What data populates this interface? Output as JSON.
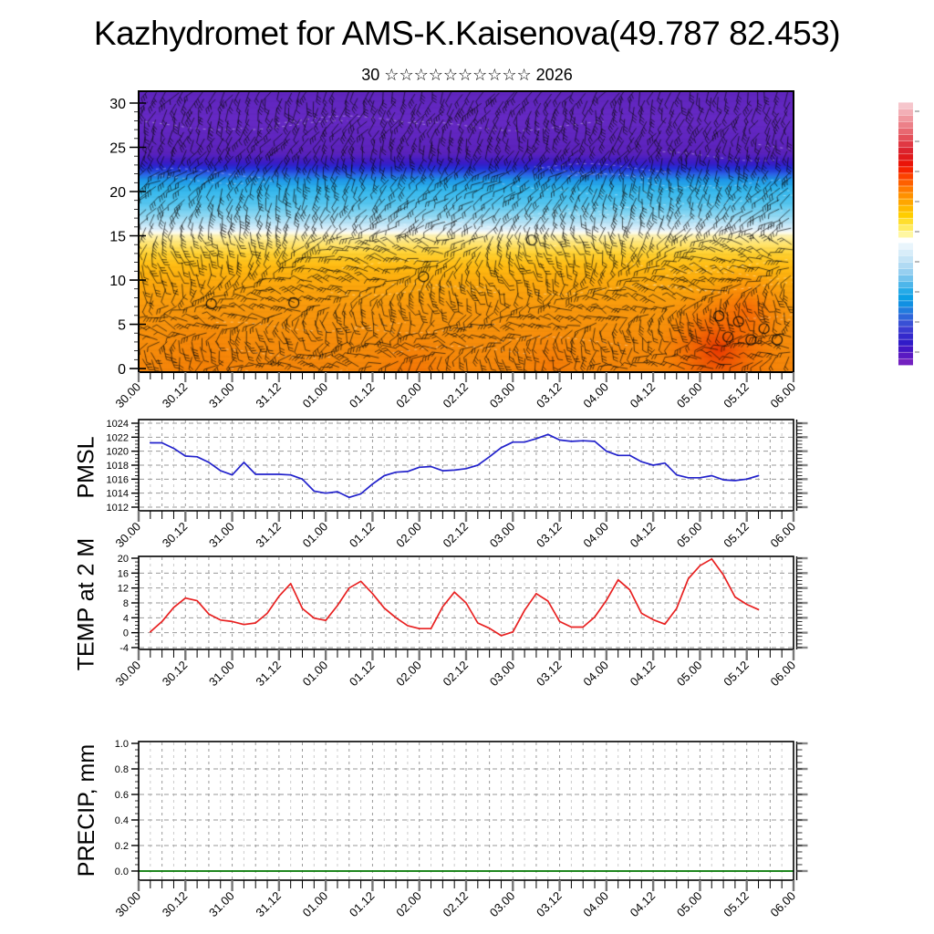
{
  "meteogram": {
    "title": "Kazhydromet for AMS-K.Kaisenova(49.787 82.453)",
    "subtitle": "30 ☆☆☆☆☆☆☆☆☆☆ 2026"
  },
  "time_axis": {
    "labels": [
      "30.00",
      "30.12",
      "31.00",
      "31.12",
      "01.00",
      "01.12",
      "02.00",
      "02.12",
      "03.00",
      "03.12",
      "04.00",
      "04.12",
      "05.00",
      "05.12",
      "06.00"
    ],
    "span_hours": 168,
    "label_step_hours": 12,
    "tick_step_hours": 3,
    "grid_step_hours": 6
  },
  "chart_data": [
    {
      "id": "wind",
      "type": "heatmap",
      "panel_label": "",
      "y_ticks": [
        0,
        5,
        10,
        15,
        20,
        25,
        30
      ],
      "ylim": [
        0,
        30
      ],
      "description": "Time-height cross-section of wind barbs over temperature shading: warm orange/red near the surface (0-14), yellow transition near 15, cyan-blue band 15-22, cold purple above 22",
      "shading_stops_top_to_bottom": [
        {
          "p": 0.0,
          "c": "#5F25BE"
        },
        {
          "p": 0.1,
          "c": "#6629C4"
        },
        {
          "p": 0.22,
          "c": "#5B22BC"
        },
        {
          "p": 0.255,
          "c": "#3A1BC6"
        },
        {
          "p": 0.275,
          "c": "#2230D8"
        },
        {
          "p": 0.295,
          "c": "#2B62E4"
        },
        {
          "p": 0.315,
          "c": "#1D94E8"
        },
        {
          "p": 0.345,
          "c": "#2FB4EC"
        },
        {
          "p": 0.4,
          "c": "#55C6F0"
        },
        {
          "p": 0.44,
          "c": "#8BD7F3"
        },
        {
          "p": 0.475,
          "c": "#C3E7F8"
        },
        {
          "p": 0.495,
          "c": "#E9F4FB"
        },
        {
          "p": 0.505,
          "c": "#FDFBE8"
        },
        {
          "p": 0.515,
          "c": "#FFF3B0"
        },
        {
          "p": 0.545,
          "c": "#FFE36B"
        },
        {
          "p": 0.58,
          "c": "#FFD02F"
        },
        {
          "p": 0.62,
          "c": "#FFBC13"
        },
        {
          "p": 0.68,
          "c": "#FCA90D"
        },
        {
          "p": 0.78,
          "c": "#F8970D"
        },
        {
          "p": 0.9,
          "c": "#F68C0B"
        },
        {
          "p": 1.0,
          "c": "#F5850A"
        }
      ],
      "hot_spots": [
        {
          "fx": 0.885,
          "fy": 0.92,
          "r": 0.1,
          "c": "#E62E00",
          "a": 0.9
        },
        {
          "fx": 0.93,
          "fy": 0.78,
          "r": 0.07,
          "c": "#F34A00",
          "a": 0.55
        },
        {
          "fx": 0.42,
          "fy": 1.02,
          "r": 0.08,
          "c": "#F05A00",
          "a": 0.45
        },
        {
          "fx": 0.63,
          "fy": 0.97,
          "r": 0.06,
          "c": "#F26000",
          "a": 0.35
        },
        {
          "fx": 0.1,
          "fy": 0.95,
          "r": 0.07,
          "c": "#F07800",
          "a": 0.4
        }
      ],
      "calm_circles": [
        {
          "fx": 0.111,
          "fy": 0.757
        },
        {
          "fx": 0.237,
          "fy": 0.753
        },
        {
          "fx": 0.435,
          "fy": 0.66
        },
        {
          "fx": 0.6,
          "fy": 0.53
        },
        {
          "fx": 0.886,
          "fy": 0.8
        },
        {
          "fx": 0.9,
          "fy": 0.875
        },
        {
          "fx": 0.935,
          "fy": 0.885
        },
        {
          "fx": 0.955,
          "fy": 0.845
        },
        {
          "fx": 0.975,
          "fy": 0.885
        },
        {
          "fx": 0.916,
          "fy": 0.82
        }
      ],
      "barb_color": "#0A0A0A"
    },
    {
      "id": "pmsl",
      "type": "line",
      "panel_label": "PMSL",
      "line_color": "#2222CC",
      "y_ticks": [
        1012,
        1014,
        1016,
        1018,
        1020,
        1022,
        1024
      ],
      "ylim": [
        1012,
        1024
      ],
      "x_start_offset_hours": 3,
      "x_step_hours": 3,
      "values": [
        1021.2,
        1021.2,
        1020.4,
        1019.3,
        1019.2,
        1018.4,
        1017.2,
        1016.6,
        1018.4,
        1016.7,
        1016.7,
        1016.7,
        1016.6,
        1016.0,
        1014.3,
        1014.0,
        1014.2,
        1013.4,
        1013.9,
        1015.3,
        1016.5,
        1017.0,
        1017.1,
        1017.7,
        1017.8,
        1017.2,
        1017.3,
        1017.5,
        1018.0,
        1019.2,
        1020.5,
        1021.3,
        1021.3,
        1021.8,
        1022.4,
        1021.6,
        1021.4,
        1021.5,
        1021.4,
        1020.0,
        1019.4,
        1019.4,
        1018.5,
        1018.0,
        1018.3,
        1016.6,
        1016.2,
        1016.2,
        1016.5,
        1015.9,
        1015.8,
        1016.0,
        1016.5
      ]
    },
    {
      "id": "temp",
      "type": "line",
      "panel_label": "TEMP at 2 M",
      "line_color": "#E82020",
      "y_ticks": [
        -4,
        0,
        4,
        8,
        12,
        16,
        20
      ],
      "ylim": [
        -4,
        20
      ],
      "x_start_offset_hours": 3,
      "x_step_hours": 3,
      "values": [
        0.2,
        3.0,
        6.8,
        9.3,
        8.6,
        5.0,
        3.4,
        3.0,
        2.2,
        2.6,
        5.2,
        9.8,
        13.2,
        6.5,
        3.9,
        3.3,
        7.3,
        12.0,
        13.8,
        10.5,
        6.6,
        4.0,
        1.9,
        1.1,
        1.1,
        7.0,
        10.9,
        8.0,
        2.6,
        1.2,
        -0.8,
        0.2,
        6.0,
        10.5,
        8.5,
        3.0,
        1.5,
        1.5,
        4.2,
        8.7,
        14.2,
        11.5,
        5.2,
        3.5,
        2.3,
        6.5,
        14.5,
        18.0,
        19.8,
        15.5,
        9.6,
        7.6,
        6.2
      ]
    },
    {
      "id": "precip",
      "type": "line",
      "panel_label": "PRECIP, mm",
      "line_color": "#007700",
      "y_ticks": [
        "0.0",
        "0.2",
        "0.4",
        "0.6",
        "0.8",
        "1.0"
      ],
      "ylim": [
        0,
        1
      ],
      "x_start_offset_hours": 0,
      "x_step_hours": 168,
      "values": [
        0,
        0
      ]
    }
  ],
  "colorbar": {
    "top_colors": [
      "#F6C6CC",
      "#F3AFB6",
      "#F0989F",
      "#EC8088",
      "#E86871",
      "#E4505A",
      "#E03843",
      "#DC232E",
      "#E01A1C",
      "#EA1408",
      "#F52300",
      "#FB4200",
      "#FE6000",
      "#FF7B00",
      "#FF9100",
      "#FFA600",
      "#FFBA00",
      "#FFCD00",
      "#FFDE2E",
      "#FFEC64",
      "#FFF7A2"
    ],
    "bottom_colors": [
      "#E9F5FC",
      "#D8EDF9",
      "#C5E4F6",
      "#B0DAF3",
      "#96CFF0",
      "#74C3ED",
      "#4DB6EA",
      "#25AAE8",
      "#0C9FE5",
      "#1190E2",
      "#217CDE",
      "#2E66DA",
      "#3850D5",
      "#3A3BD1",
      "#3429CC",
      "#301BC8",
      "#4316C4",
      "#5A19C2",
      "#7321C0"
    ]
  },
  "texture_seed": 20260130
}
